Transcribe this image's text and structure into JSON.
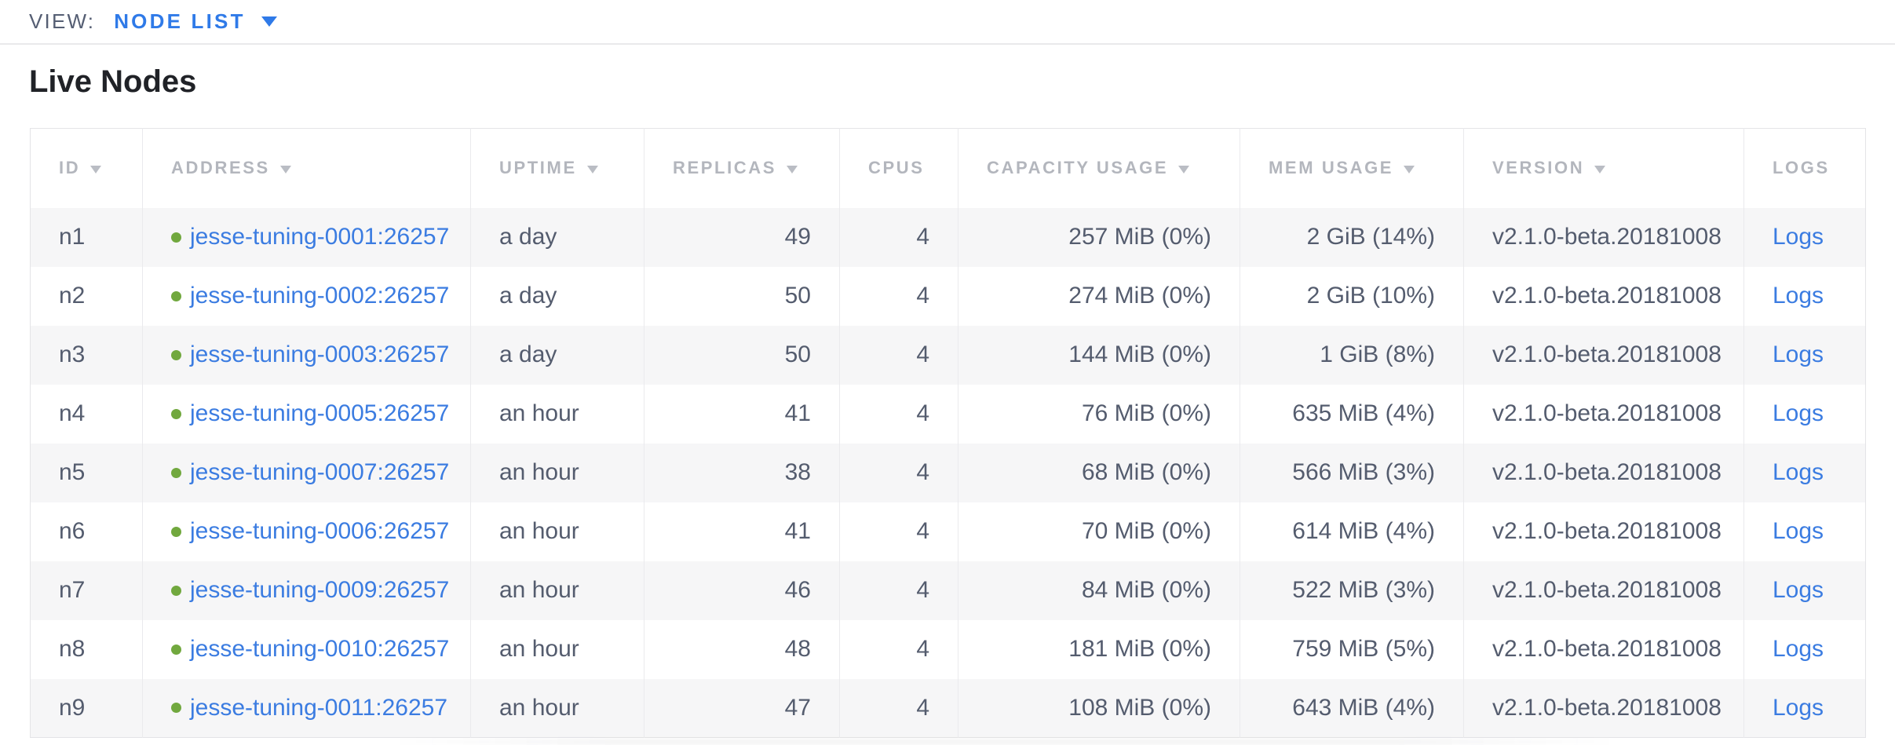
{
  "view_bar": {
    "label": "VIEW:",
    "selected": "NODE LIST"
  },
  "page": {
    "title": "Live Nodes"
  },
  "table": {
    "columns": [
      {
        "key": "id",
        "label": "ID",
        "sortable": true,
        "align": "left"
      },
      {
        "key": "address",
        "label": "ADDRESS",
        "sortable": true,
        "align": "left"
      },
      {
        "key": "uptime",
        "label": "UPTIME",
        "sortable": true,
        "align": "left"
      },
      {
        "key": "replicas",
        "label": "REPLICAS",
        "sortable": true,
        "align": "right"
      },
      {
        "key": "cpus",
        "label": "CPUS",
        "sortable": false,
        "align": "right"
      },
      {
        "key": "capacity_usage",
        "label": "CAPACITY USAGE",
        "sortable": true,
        "align": "right"
      },
      {
        "key": "mem_usage",
        "label": "MEM USAGE",
        "sortable": true,
        "align": "right"
      },
      {
        "key": "version",
        "label": "VERSION",
        "sortable": true,
        "align": "left"
      },
      {
        "key": "logs",
        "label": "LOGS",
        "sortable": false,
        "align": "left"
      }
    ],
    "rows": [
      {
        "id": "n1",
        "address": "jesse-tuning-0001:26257",
        "status": "live",
        "uptime": "a day",
        "replicas": "49",
        "cpus": "4",
        "capacity_usage": "257 MiB (0%)",
        "mem_usage": "2 GiB (14%)",
        "version": "v2.1.0-beta.20181008",
        "logs": "Logs"
      },
      {
        "id": "n2",
        "address": "jesse-tuning-0002:26257",
        "status": "live",
        "uptime": "a day",
        "replicas": "50",
        "cpus": "4",
        "capacity_usage": "274 MiB (0%)",
        "mem_usage": "2 GiB (10%)",
        "version": "v2.1.0-beta.20181008",
        "logs": "Logs"
      },
      {
        "id": "n3",
        "address": "jesse-tuning-0003:26257",
        "status": "live",
        "uptime": "a day",
        "replicas": "50",
        "cpus": "4",
        "capacity_usage": "144 MiB (0%)",
        "mem_usage": "1 GiB (8%)",
        "version": "v2.1.0-beta.20181008",
        "logs": "Logs"
      },
      {
        "id": "n4",
        "address": "jesse-tuning-0005:26257",
        "status": "live",
        "uptime": "an hour",
        "replicas": "41",
        "cpus": "4",
        "capacity_usage": "76 MiB (0%)",
        "mem_usage": "635 MiB (4%)",
        "version": "v2.1.0-beta.20181008",
        "logs": "Logs"
      },
      {
        "id": "n5",
        "address": "jesse-tuning-0007:26257",
        "status": "live",
        "uptime": "an hour",
        "replicas": "38",
        "cpus": "4",
        "capacity_usage": "68 MiB (0%)",
        "mem_usage": "566 MiB (3%)",
        "version": "v2.1.0-beta.20181008",
        "logs": "Logs"
      },
      {
        "id": "n6",
        "address": "jesse-tuning-0006:26257",
        "status": "live",
        "uptime": "an hour",
        "replicas": "41",
        "cpus": "4",
        "capacity_usage": "70 MiB (0%)",
        "mem_usage": "614 MiB (4%)",
        "version": "v2.1.0-beta.20181008",
        "logs": "Logs"
      },
      {
        "id": "n7",
        "address": "jesse-tuning-0009:26257",
        "status": "live",
        "uptime": "an hour",
        "replicas": "46",
        "cpus": "4",
        "capacity_usage": "84 MiB (0%)",
        "mem_usage": "522 MiB (3%)",
        "version": "v2.1.0-beta.20181008",
        "logs": "Logs"
      },
      {
        "id": "n8",
        "address": "jesse-tuning-0010:26257",
        "status": "live",
        "uptime": "an hour",
        "replicas": "48",
        "cpus": "4",
        "capacity_usage": "181 MiB (0%)",
        "mem_usage": "759 MiB (5%)",
        "version": "v2.1.0-beta.20181008",
        "logs": "Logs"
      },
      {
        "id": "n9",
        "address": "jesse-tuning-0011:26257",
        "status": "live",
        "uptime": "an hour",
        "replicas": "47",
        "cpus": "4",
        "capacity_usage": "108 MiB (0%)",
        "mem_usage": "643 MiB (4%)",
        "version": "v2.1.0-beta.20181008",
        "logs": "Logs"
      }
    ]
  },
  "colors": {
    "link_blue": "#3b7ce1",
    "view_selector_blue": "#2f7ae8",
    "live_status_green": "#71a83e",
    "header_text_gray": "#b3b6bd",
    "body_text_slate": "#545c6e",
    "row_stripe": "#f6f6f7",
    "table_border": "#e4e4e7"
  },
  "icons": {
    "sort_desc": "triangle-down",
    "dropdown_caret": "triangle-down",
    "live_status": "green-dot"
  }
}
